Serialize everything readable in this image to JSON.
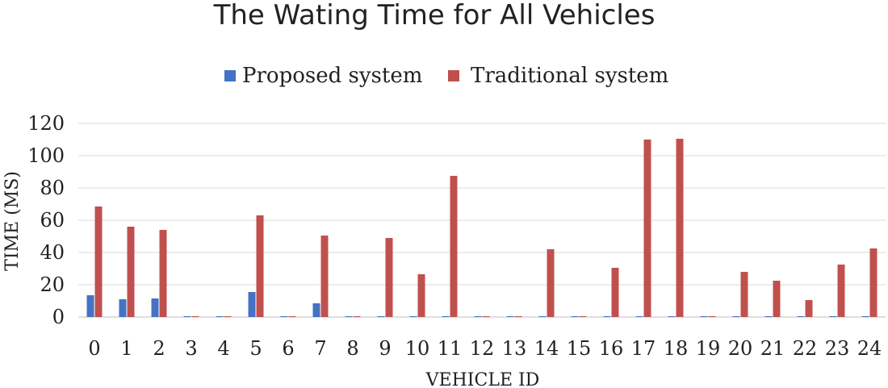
{
  "chart_data": {
    "type": "bar",
    "title": "The Wating Time for All Vehicles",
    "xlabel": "VEHICLE ID",
    "ylabel": "TIME (MS)",
    "ylim": [
      0,
      120
    ],
    "yticks": [
      0,
      20,
      40,
      60,
      80,
      100,
      120
    ],
    "grid": true,
    "legend_position": "top",
    "categories": [
      "0",
      "1",
      "2",
      "3",
      "4",
      "5",
      "6",
      "7",
      "8",
      "9",
      "10",
      "11",
      "12",
      "13",
      "14",
      "15",
      "16",
      "17",
      "18",
      "19",
      "20",
      "21",
      "22",
      "23",
      "24"
    ],
    "series": [
      {
        "name": "Proposed system",
        "color": "#4472C4",
        "values": [
          13.5,
          11,
          11.5,
          0.5,
          0.5,
          15.5,
          0.5,
          8.5,
          0.5,
          0.5,
          0.5,
          0.5,
          0.5,
          0.5,
          0.5,
          0.5,
          0.5,
          0.5,
          0.5,
          0.5,
          0.5,
          0.5,
          0.5,
          0.5,
          0.5
        ]
      },
      {
        "name": "Traditional system",
        "color": "#C0504D",
        "values": [
          68.5,
          56,
          54,
          0.5,
          0.5,
          63,
          0.5,
          50.5,
          0.5,
          49,
          26.5,
          87.5,
          0.5,
          0.5,
          42,
          0.5,
          30.5,
          110,
          110.5,
          0.5,
          28,
          22.5,
          10.5,
          32.5,
          42.5
        ]
      }
    ]
  }
}
